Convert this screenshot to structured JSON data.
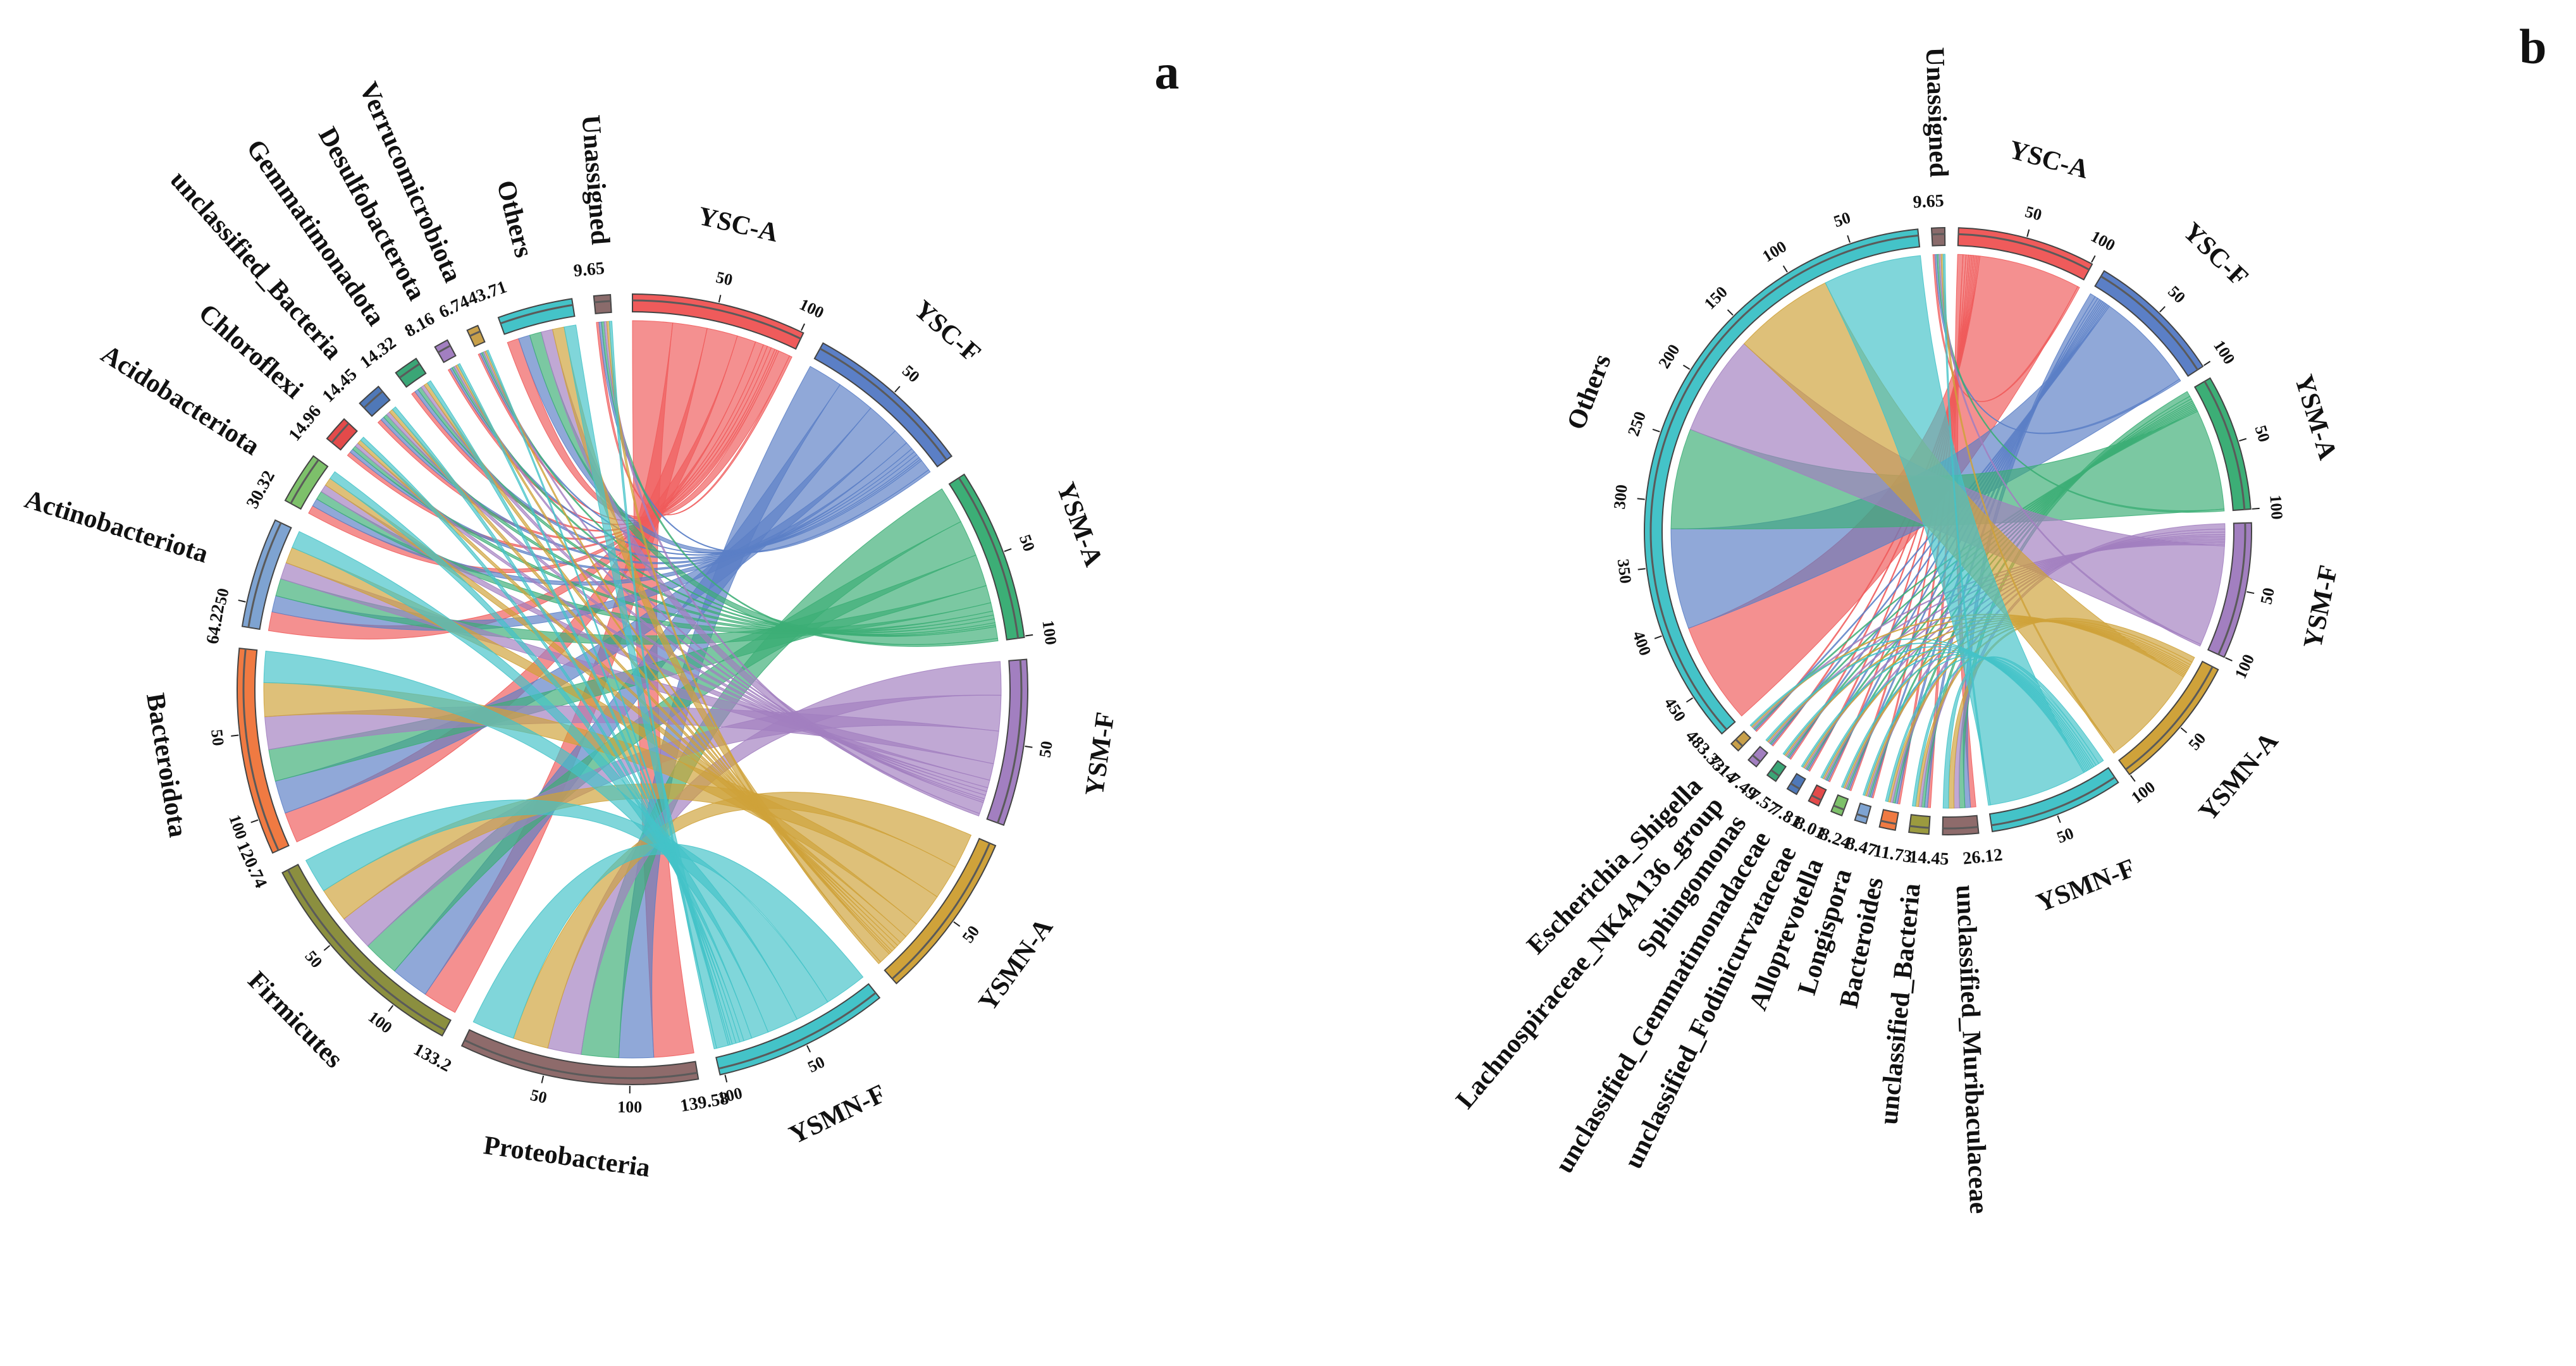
{
  "chart_data": [
    {
      "type": "chord",
      "panel": "a",
      "title": "",
      "groups_axis_max": 100,
      "groups": [
        "YSC-A",
        "YSC-F",
        "YSM-A",
        "YSM-F",
        "YSMN-A",
        "YSMN-F"
      ],
      "group_colors": [
        "#ef5b5b",
        "#5b7fc6",
        "#3cae76",
        "#a27fc0",
        "#cfa23a",
        "#44c3c8"
      ],
      "taxa": [
        "Proteobacteria",
        "Firmicutes",
        "Bacteroidota",
        "Actinobacteriota",
        "Acidobacteriota",
        "Chloroflexi",
        "unclassified_Bacteria",
        "Gemmatimonadota",
        "Desulfobacterota",
        "Verrucomicrobiota",
        "Others",
        "Unassigned"
      ],
      "taxa_totals": [
        "139.58",
        "133.2",
        "120.74",
        "64.22",
        "30.32",
        "14.96",
        "14.45",
        "14.32",
        "8.16",
        "6.74",
        "43.71",
        "9.65"
      ],
      "taxa_colors": [
        "#8e6b6b",
        "#8b8f3f",
        "#f07a42",
        "#7ea3d1",
        "#7dc06a",
        "#e34a4a",
        "#4f78b8",
        "#3aa676",
        "#a27fc0",
        "#c8a04a",
        "#44c3c8",
        "#8a6b6b"
      ],
      "matrix": [
        [
          24.9,
          21.6,
          23.4,
          20.9,
          22.1,
          26.7
        ],
        [
          21.5,
          23.8,
          22.6,
          22.2,
          21.4,
          21.7
        ],
        [
          19.2,
          20.6,
          19.9,
          20.4,
          21.1,
          19.5
        ],
        [
          11.8,
          10.2,
          10.9,
          10.4,
          10.1,
          10.8
        ],
        [
          5.2,
          4.9,
          5.3,
          4.8,
          5.0,
          5.1
        ],
        [
          2.6,
          2.4,
          2.5,
          2.4,
          2.5,
          2.6
        ],
        [
          2.5,
          2.3,
          2.4,
          2.4,
          2.4,
          2.5
        ],
        [
          2.5,
          2.3,
          2.4,
          2.3,
          2.4,
          2.4
        ],
        [
          1.4,
          1.3,
          1.4,
          1.3,
          1.4,
          1.4
        ],
        [
          1.2,
          1.1,
          1.1,
          1.1,
          1.1,
          1.1
        ],
        [
          7.3,
          7.2,
          7.3,
          7.2,
          7.3,
          7.4
        ],
        [
          1.6,
          1.6,
          1.6,
          1.6,
          1.6,
          1.6
        ]
      ]
    },
    {
      "type": "chord",
      "panel": "b",
      "title": "",
      "groups_axis_max": 100,
      "groups": [
        "YSC-A",
        "YSC-F",
        "YSM-A",
        "YSM-F",
        "YSMN-A",
        "YSMN-F"
      ],
      "group_colors": [
        "#ef5b5b",
        "#5b7fc6",
        "#3cae76",
        "#a27fc0",
        "#cfa23a",
        "#44c3c8"
      ],
      "taxa": [
        "unclassified_Muribaculaceae",
        "unclassified_Bacteria",
        "Bacteroides",
        "Longispora",
        "Alloprevotella",
        "unclassified_Fodinicurvataceae",
        "unclassified_Gemmatimonadaceae",
        "Sphingomonas",
        "Lachnospiraceae_NK4A136_group",
        "Escherichia_Shigella",
        "Others",
        "Unassigned"
      ],
      "taxa_totals": [
        "26.12",
        "14.45",
        "11.73",
        "8.47",
        "8.24",
        "8.01",
        "7.81",
        "7.57",
        "7.49",
        "7.14",
        "483.33",
        "9.65"
      ],
      "taxa_colors": [
        "#8e6b6b",
        "#9b9a3f",
        "#f07a42",
        "#7ea3d1",
        "#7dc06a",
        "#e34a4a",
        "#4f78b8",
        "#3aa676",
        "#a27fc0",
        "#c8a04a",
        "#44c3c8",
        "#8a6b6b"
      ],
      "matrix": [
        [
          4.3,
          4.4,
          4.3,
          4.4,
          4.3,
          4.4
        ],
        [
          2.4,
          2.4,
          2.4,
          2.4,
          2.4,
          2.5
        ],
        [
          1.9,
          2.0,
          1.9,
          2.0,
          1.9,
          2.0
        ],
        [
          1.4,
          1.4,
          1.4,
          1.4,
          1.4,
          1.5
        ],
        [
          1.4,
          1.4,
          1.4,
          1.3,
          1.4,
          1.4
        ],
        [
          1.3,
          1.4,
          1.3,
          1.3,
          1.3,
          1.4
        ],
        [
          1.3,
          1.3,
          1.3,
          1.3,
          1.3,
          1.3
        ],
        [
          1.3,
          1.2,
          1.3,
          1.2,
          1.3,
          1.3
        ],
        [
          1.2,
          1.3,
          1.2,
          1.3,
          1.2,
          1.3
        ],
        [
          1.2,
          1.2,
          1.2,
          1.2,
          1.2,
          1.1
        ],
        [
          81.7,
          80.6,
          80.7,
          80.6,
          80.9,
          78.8
        ],
        [
          1.6,
          1.6,
          1.6,
          1.6,
          1.6,
          1.6
        ]
      ]
    }
  ],
  "panel_labels": [
    "a",
    "b"
  ]
}
